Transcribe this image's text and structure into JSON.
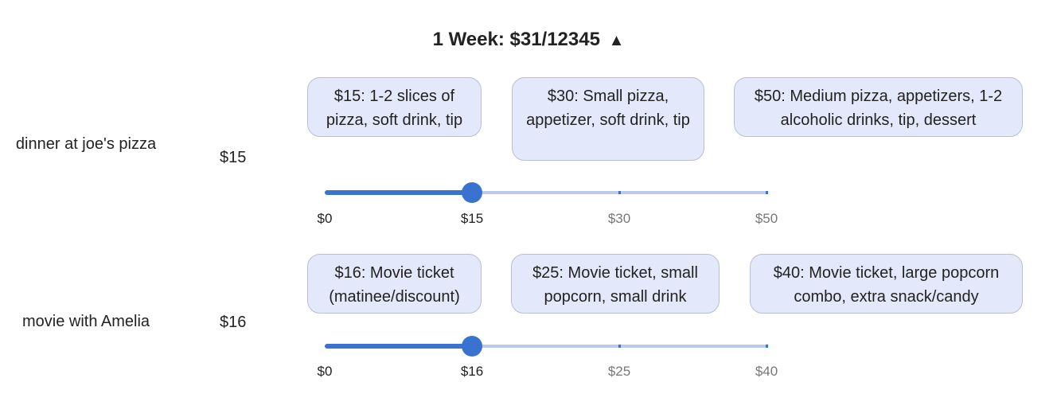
{
  "header": {
    "title": "1 Week: $31/12345",
    "icon": "triangle-up-icon"
  },
  "rows": [
    {
      "label": "dinner at joe's pizza",
      "value": "$15",
      "options": [
        "$15: 1-2 slices of pizza, soft drink, tip",
        "$30: Small pizza, appetizer, soft drink, tip",
        "$50: Medium pizza, appetizers, 1-2 alcoholic drinks, tip, dessert"
      ],
      "slider": {
        "min": 0,
        "max": 50,
        "value": 15,
        "stops": [
          0,
          15,
          30,
          50
        ]
      },
      "ticks": [
        "$0",
        "$15",
        "$30",
        "$50"
      ]
    },
    {
      "label": "movie with Amelia",
      "value": "$16",
      "options": [
        "$16: Movie ticket (matinee/discount)",
        "$25: Movie ticket, small popcorn, small drink",
        "$40: Movie ticket, large popcorn combo, extra snack/candy"
      ],
      "slider": {
        "min": 0,
        "max": 40,
        "value": 16,
        "stops": [
          0,
          16,
          25,
          40
        ]
      },
      "ticks": [
        "$0",
        "$16",
        "$25",
        "$40"
      ]
    }
  ]
}
